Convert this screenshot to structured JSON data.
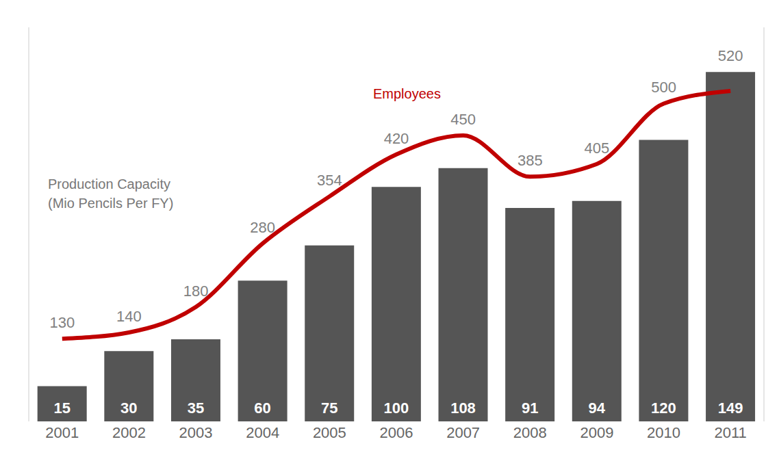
{
  "chart_data": {
    "type": "bar",
    "categories": [
      "2001",
      "2002",
      "2003",
      "2004",
      "2005",
      "2006",
      "2007",
      "2008",
      "2009",
      "2010",
      "2011"
    ],
    "series": [
      {
        "name": "Production Capacity (Mio Pencils Per FY)",
        "type": "bar",
        "color": "#555555",
        "values": [
          15,
          30,
          35,
          60,
          75,
          100,
          108,
          91,
          94,
          120,
          149
        ]
      },
      {
        "name": "Employees",
        "type": "line",
        "color": "#c00000",
        "axis": "y2",
        "values": [
          130,
          140,
          180,
          280,
          354,
          420,
          450,
          385,
          405,
          500,
          520
        ]
      }
    ],
    "ylim": [
      0,
      168
    ],
    "y2lim": [
      0,
      620
    ],
    "data_labels": true,
    "tick_labels": "x",
    "grid": false
  }
}
